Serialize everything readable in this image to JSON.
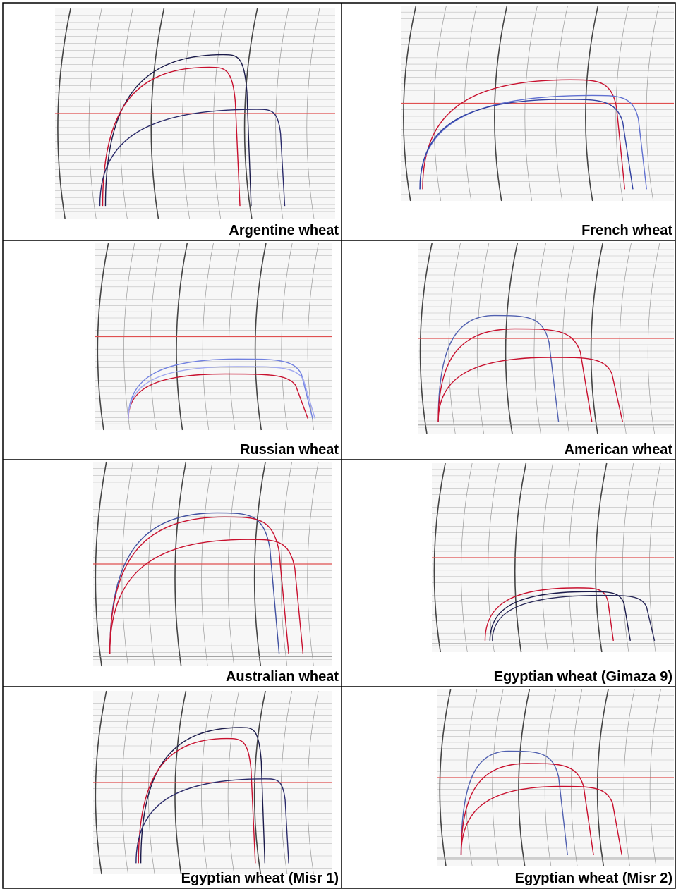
{
  "cells": [
    {
      "label": "Argentine wheat"
    },
    {
      "label": "French wheat"
    },
    {
      "label": "Russian wheat"
    },
    {
      "label": "American wheat"
    },
    {
      "label": "Australian wheat"
    },
    {
      "label": "Egyptian wheat (Gimaza 9)"
    },
    {
      "label": "Egyptian wheat (Misr 1)"
    },
    {
      "label": "Egyptian wheat (Misr 2)"
    }
  ]
}
